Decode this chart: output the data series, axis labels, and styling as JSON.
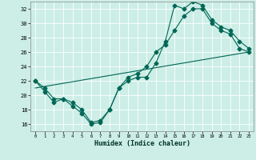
{
  "title": "",
  "xlabel": "Humidex (Indice chaleur)",
  "bg_color": "#cceee6",
  "line_color": "#006655",
  "xlim": [
    -0.5,
    23.5
  ],
  "ylim": [
    15,
    33
  ],
  "yticks": [
    16,
    18,
    20,
    22,
    24,
    26,
    28,
    30,
    32
  ],
  "xticks": [
    0,
    1,
    2,
    3,
    4,
    5,
    6,
    7,
    8,
    9,
    10,
    11,
    12,
    13,
    14,
    15,
    16,
    17,
    18,
    19,
    20,
    21,
    22,
    23
  ],
  "line1_x": [
    0,
    1,
    2,
    3,
    4,
    5,
    6,
    7,
    8,
    9,
    10,
    11,
    12,
    13,
    14,
    15,
    16,
    17,
    18,
    19,
    20,
    21,
    22,
    23
  ],
  "line1_y": [
    22,
    21,
    19.5,
    19.5,
    18.5,
    17.5,
    16.0,
    16.2,
    18.0,
    21.0,
    22.5,
    23.0,
    24.0,
    26.0,
    27.0,
    29.0,
    31.0,
    32.0,
    32.0,
    30.0,
    29.0,
    28.5,
    26.5,
    26.0
  ],
  "line2_x": [
    0,
    1,
    2,
    3,
    4,
    5,
    6,
    7,
    8,
    9,
    10,
    11,
    12,
    13,
    14,
    15,
    16,
    17,
    18,
    19,
    20,
    21,
    22,
    23
  ],
  "line2_y": [
    22,
    20.5,
    19.0,
    19.5,
    19.0,
    18.0,
    16.2,
    16.5,
    18.0,
    21.0,
    22.0,
    22.5,
    22.5,
    24.5,
    27.5,
    32.5,
    32.0,
    33.0,
    32.5,
    30.5,
    29.5,
    29.0,
    27.5,
    26.5
  ],
  "line3_x": [
    0,
    23
  ],
  "line3_y": [
    21.0,
    26.0
  ]
}
